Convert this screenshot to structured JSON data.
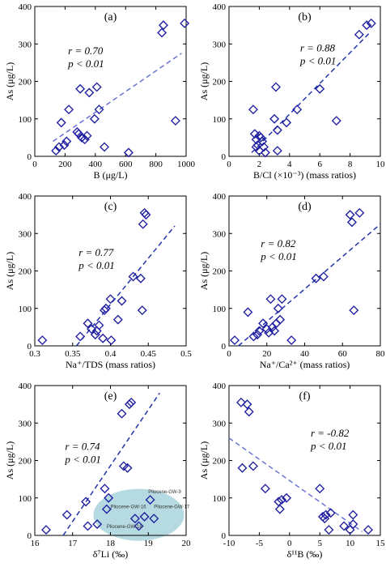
{
  "chart_data": [
    {
      "type": "scatter",
      "panel_label": "(a)",
      "xlabel": "B (μg/L)",
      "ylabel": "As (μg/L)",
      "xlim": [
        0,
        1000
      ],
      "ylim": [
        0,
        400
      ],
      "xticks": [
        "0",
        "200",
        "400",
        "600",
        "800",
        "1000"
      ],
      "yticks": [
        "0",
        "100",
        "200",
        "300",
        "400"
      ],
      "stats": [
        "r = 0.70",
        "p < 0.01"
      ],
      "trendline": {
        "color": "#6a72d6",
        "x": [
          120,
          970
        ],
        "y": [
          40,
          275
        ]
      },
      "points": [
        [
          140,
          15
        ],
        [
          160,
          25
        ],
        [
          175,
          90
        ],
        [
          195,
          30
        ],
        [
          210,
          40
        ],
        [
          225,
          125
        ],
        [
          280,
          65
        ],
        [
          290,
          60
        ],
        [
          300,
          180
        ],
        [
          310,
          50
        ],
        [
          330,
          45
        ],
        [
          345,
          55
        ],
        [
          360,
          170
        ],
        [
          395,
          100
        ],
        [
          410,
          185
        ],
        [
          425,
          125
        ],
        [
          460,
          25
        ],
        [
          620,
          10
        ],
        [
          840,
          330
        ],
        [
          850,
          350
        ],
        [
          930,
          95
        ],
        [
          990,
          355
        ]
      ]
    },
    {
      "type": "scatter",
      "panel_label": "(b)",
      "xlabel": "B/Cl (×10⁻³)  (mass ratios)",
      "ylabel": "As (μg/L)",
      "xlim": [
        0,
        10
      ],
      "ylim": [
        0,
        400
      ],
      "xticks": [
        "0",
        "2",
        "4",
        "6",
        "8",
        "10"
      ],
      "yticks": [
        "0",
        "100",
        "200",
        "300",
        "400"
      ],
      "stats": [
        "r = 0.88",
        "p < 0.01"
      ],
      "trendline": {
        "color": "#2233aa",
        "x": [
          1.5,
          9.3
        ],
        "y": [
          10,
          330
        ]
      },
      "points": [
        [
          1.6,
          125
        ],
        [
          1.7,
          60
        ],
        [
          1.8,
          45
        ],
        [
          1.8,
          25
        ],
        [
          1.9,
          30
        ],
        [
          2.0,
          55
        ],
        [
          2.0,
          15
        ],
        [
          2.1,
          50
        ],
        [
          2.2,
          40
        ],
        [
          2.3,
          25
        ],
        [
          2.4,
          10
        ],
        [
          3.0,
          100
        ],
        [
          3.1,
          185
        ],
        [
          3.2,
          70
        ],
        [
          3.2,
          15
        ],
        [
          3.8,
          90
        ],
        [
          4.5,
          125
        ],
        [
          6.0,
          180
        ],
        [
          7.1,
          95
        ],
        [
          8.6,
          325
        ],
        [
          9.1,
          350
        ],
        [
          9.4,
          355
        ]
      ]
    },
    {
      "type": "scatter",
      "panel_label": "(c)",
      "xlabel": "Na⁺/TDS (mass ratios)",
      "ylabel": "As (μg/L)",
      "xlim": [
        0.3,
        0.5
      ],
      "ylim": [
        0,
        400
      ],
      "xticks": [
        "0.3",
        "0.35",
        "0.4",
        "0.45",
        "0.5"
      ],
      "yticks": [
        "0",
        "100",
        "200",
        "300",
        "400"
      ],
      "stats": [
        "r = 0.77",
        "p < 0.01"
      ],
      "trendline": {
        "color": "#2233aa",
        "x": [
          0.355,
          0.485
        ],
        "y": [
          0,
          320
        ]
      },
      "points": [
        [
          0.31,
          15
        ],
        [
          0.36,
          25
        ],
        [
          0.37,
          60
        ],
        [
          0.375,
          45
        ],
        [
          0.38,
          30
        ],
        [
          0.382,
          40
        ],
        [
          0.385,
          55
        ],
        [
          0.39,
          20
        ],
        [
          0.392,
          95
        ],
        [
          0.394,
          100
        ],
        [
          0.4,
          125
        ],
        [
          0.401,
          15
        ],
        [
          0.41,
          70
        ],
        [
          0.415,
          120
        ],
        [
          0.43,
          185
        ],
        [
          0.44,
          180
        ],
        [
          0.442,
          95
        ],
        [
          0.443,
          325
        ],
        [
          0.445,
          355
        ],
        [
          0.447,
          350
        ]
      ]
    },
    {
      "type": "scatter",
      "panel_label": "(d)",
      "xlabel": "Na⁺/Ca²⁺ (mass ratios)",
      "ylabel": "As (μg/L)",
      "xlim": [
        0,
        80
      ],
      "ylim": [
        0,
        400
      ],
      "xticks": [
        "0",
        "20",
        "40",
        "60",
        "80"
      ],
      "yticks": [
        "0",
        "100",
        "200",
        "300",
        "400"
      ],
      "stats": [
        "r = 0.82",
        "p < 0.01"
      ],
      "trendline": {
        "color": "#2233aa",
        "x": [
          5,
          80
        ],
        "y": [
          0,
          325
        ]
      },
      "points": [
        [
          3,
          15
        ],
        [
          10,
          90
        ],
        [
          13,
          25
        ],
        [
          15,
          30
        ],
        [
          16,
          40
        ],
        [
          18,
          60
        ],
        [
          20,
          45
        ],
        [
          21,
          35
        ],
        [
          22,
          125
        ],
        [
          23,
          50
        ],
        [
          24,
          40
        ],
        [
          25,
          60
        ],
        [
          26,
          100
        ],
        [
          27,
          70
        ],
        [
          28,
          125
        ],
        [
          33,
          15
        ],
        [
          46,
          180
        ],
        [
          50,
          185
        ],
        [
          64,
          350
        ],
        [
          65,
          330
        ],
        [
          66,
          95
        ],
        [
          69,
          355
        ]
      ]
    },
    {
      "type": "scatter",
      "panel_label": "(e)",
      "xlabel": "δ⁷Li (‰)",
      "ylabel": "As (μg/L)",
      "xlim": [
        16,
        20
      ],
      "ylim": [
        0,
        400
      ],
      "xticks": [
        "16",
        "17",
        "18",
        "19",
        "20"
      ],
      "yticks": [
        "0",
        "100",
        "200",
        "300",
        "400"
      ],
      "stats": [
        "r = 0.74",
        "p < 0.01"
      ],
      "trendline": {
        "color": "#2233aa",
        "x": [
          16.75,
          19.3
        ],
        "y": [
          0,
          380
        ]
      },
      "points": [
        [
          16.3,
          15
        ],
        [
          16.85,
          55
        ],
        [
          17.35,
          90
        ],
        [
          17.4,
          25
        ],
        [
          17.65,
          30
        ],
        [
          17.85,
          125
        ],
        [
          17.9,
          70
        ],
        [
          17.95,
          100
        ],
        [
          18.3,
          325
        ],
        [
          18.35,
          185
        ],
        [
          18.45,
          180
        ],
        [
          18.5,
          350
        ],
        [
          18.55,
          355
        ],
        [
          18.65,
          45
        ],
        [
          18.75,
          25
        ],
        [
          18.9,
          50
        ],
        [
          19.05,
          95
        ],
        [
          19.15,
          45
        ]
      ],
      "highlight": {
        "color": "#a9d4dc",
        "labels": [
          "Pliocene-GW-9",
          "Pliocene-GW-16",
          "Pliocene-GW-17",
          "Pliocene-GW-18"
        ]
      }
    },
    {
      "type": "scatter",
      "panel_label": "(f)",
      "xlabel": "δ¹¹B (‰)",
      "ylabel": "As (μg/L)",
      "xlim": [
        -10,
        15
      ],
      "ylim": [
        0,
        400
      ],
      "xticks": [
        "-10",
        "-5",
        "0",
        "5",
        "10",
        "15"
      ],
      "yticks": [
        "0",
        "100",
        "200",
        "300",
        "400"
      ],
      "stats": [
        "r = -0.82",
        "p < 0.01"
      ],
      "trendline": {
        "color": "#6a72d6",
        "x": [
          -10,
          12
        ],
        "y": [
          260,
          10
        ]
      },
      "points": [
        [
          -8,
          355
        ],
        [
          -7.8,
          180
        ],
        [
          -7,
          350
        ],
        [
          -6.7,
          330
        ],
        [
          -6,
          185
        ],
        [
          -4,
          125
        ],
        [
          -1.8,
          90
        ],
        [
          -1.6,
          70
        ],
        [
          -1.3,
          95
        ],
        [
          -0.5,
          100
        ],
        [
          5,
          125
        ],
        [
          5.5,
          50
        ],
        [
          5.8,
          45
        ],
        [
          6,
          55
        ],
        [
          6.5,
          15
        ],
        [
          6.8,
          60
        ],
        [
          9,
          25
        ],
        [
          10,
          15
        ],
        [
          10.5,
          55
        ],
        [
          10.5,
          30
        ],
        [
          13,
          15
        ]
      ]
    }
  ]
}
